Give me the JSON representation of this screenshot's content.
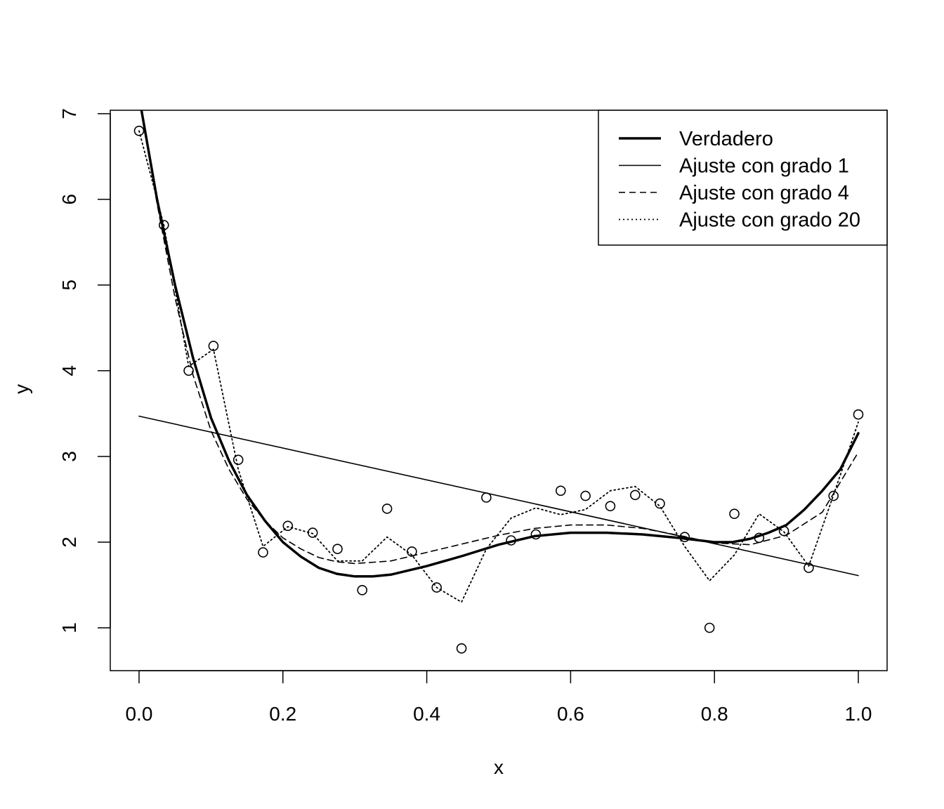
{
  "chart_data": {
    "type": "scatter",
    "title": "",
    "xlabel": "x",
    "ylabel": "y",
    "xlim": [
      -0.04,
      1.04
    ],
    "ylim": [
      0.5,
      7.04
    ],
    "xticks": [
      0.0,
      0.2,
      0.4,
      0.6,
      0.8,
      1.0
    ],
    "xtick_labels": [
      "0.0",
      "0.2",
      "0.4",
      "0.6",
      "0.8",
      "1.0"
    ],
    "yticks": [
      1,
      2,
      3,
      4,
      5,
      6,
      7
    ],
    "ytick_labels": [
      "1",
      "2",
      "3",
      "4",
      "5",
      "6",
      "7"
    ],
    "grid": false,
    "legend_position": "top-right",
    "points": {
      "x": [
        0.0,
        0.0345,
        0.069,
        0.1034,
        0.1379,
        0.1724,
        0.2069,
        0.2414,
        0.2759,
        0.3103,
        0.3448,
        0.3793,
        0.4138,
        0.4483,
        0.4828,
        0.5172,
        0.5517,
        0.5862,
        0.6207,
        0.6552,
        0.6897,
        0.7241,
        0.7586,
        0.7931,
        0.8276,
        0.8621,
        0.8966,
        0.931,
        0.9655,
        1.0
      ],
      "y": [
        6.8,
        5.7,
        4.0,
        4.29,
        2.96,
        1.88,
        2.19,
        2.11,
        1.92,
        1.44,
        2.39,
        1.89,
        1.47,
        0.76,
        2.52,
        2.02,
        2.09,
        2.6,
        2.54,
        2.42,
        2.55,
        2.45,
        2.06,
        1.0,
        2.33,
        2.05,
        2.13,
        1.7,
        2.54,
        3.49
      ]
    },
    "series": [
      {
        "name": "Verdadero",
        "style": "thick-solid",
        "x": [
          0.0,
          0.025,
          0.05,
          0.075,
          0.1,
          0.125,
          0.15,
          0.175,
          0.2,
          0.225,
          0.25,
          0.275,
          0.3,
          0.325,
          0.35,
          0.4,
          0.45,
          0.5,
          0.55,
          0.6,
          0.65,
          0.7,
          0.75,
          0.8,
          0.825,
          0.85,
          0.875,
          0.9,
          0.925,
          0.95,
          0.975,
          1.0
        ],
        "y": [
          7.2,
          6.0,
          5.0,
          4.15,
          3.45,
          2.95,
          2.55,
          2.25,
          2.0,
          1.83,
          1.7,
          1.63,
          1.6,
          1.6,
          1.62,
          1.72,
          1.84,
          1.97,
          2.07,
          2.11,
          2.11,
          2.09,
          2.05,
          2.0,
          2.0,
          2.04,
          2.11,
          2.2,
          2.38,
          2.6,
          2.85,
          3.27
        ]
      },
      {
        "name": "Ajuste con grado 1",
        "style": "solid",
        "x": [
          0.0,
          1.0
        ],
        "y": [
          3.47,
          1.61
        ]
      },
      {
        "name": "Ajuste con grado 4",
        "style": "dashed",
        "x": [
          0.0,
          0.025,
          0.05,
          0.075,
          0.1,
          0.125,
          0.15,
          0.175,
          0.2,
          0.225,
          0.25,
          0.275,
          0.3,
          0.35,
          0.4,
          0.45,
          0.5,
          0.55,
          0.6,
          0.65,
          0.7,
          0.75,
          0.8,
          0.85,
          0.9,
          0.95,
          1.0
        ],
        "y": [
          7.25,
          5.95,
          4.85,
          3.95,
          3.3,
          2.85,
          2.5,
          2.25,
          2.05,
          1.92,
          1.82,
          1.77,
          1.75,
          1.78,
          1.88,
          1.98,
          2.08,
          2.16,
          2.2,
          2.2,
          2.16,
          2.08,
          1.99,
          1.97,
          2.08,
          2.35,
          3.05
        ]
      },
      {
        "name": "Ajuste con grado 20",
        "style": "dotted",
        "x": [
          0.0,
          0.0345,
          0.069,
          0.1034,
          0.1379,
          0.1724,
          0.2069,
          0.2414,
          0.2759,
          0.3103,
          0.3448,
          0.3793,
          0.4138,
          0.4483,
          0.4828,
          0.5172,
          0.5517,
          0.5862,
          0.6207,
          0.6552,
          0.6897,
          0.7241,
          0.7586,
          0.7931,
          0.8276,
          0.8621,
          0.8966,
          0.931,
          0.9655,
          1.0
        ],
        "y": [
          6.8,
          5.7,
          4.05,
          4.25,
          2.85,
          1.95,
          2.18,
          2.1,
          1.78,
          1.78,
          2.06,
          1.85,
          1.47,
          1.3,
          1.92,
          2.28,
          2.4,
          2.32,
          2.38,
          2.6,
          2.65,
          2.42,
          1.95,
          1.55,
          1.85,
          2.33,
          2.12,
          1.72,
          2.55,
          3.4
        ]
      }
    ]
  }
}
